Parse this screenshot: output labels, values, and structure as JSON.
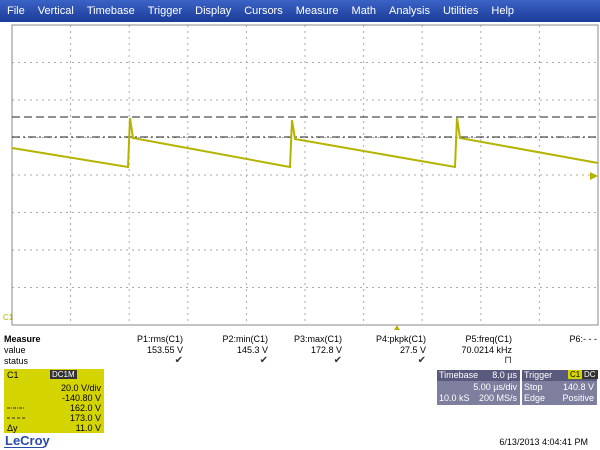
{
  "menu": [
    "File",
    "Vertical",
    "Timebase",
    "Trigger",
    "Display",
    "Cursors",
    "Measure",
    "Math",
    "Analysis",
    "Utilities",
    "Help"
  ],
  "measure": {
    "title": "Measure",
    "params": [
      "P1:rms(C1)",
      "P2:min(C1)",
      "P3:max(C1)",
      "P4:pkpk(C1)",
      "P5:freq(C1)",
      "P6:- - -"
    ],
    "row_labels": [
      "value",
      "status"
    ],
    "values": [
      "153.55 V",
      "145.3 V",
      "172.8 V",
      "27.5 V",
      "70.0214 kHz"
    ]
  },
  "channel": {
    "name": "C1",
    "coupling": "DC1M",
    "scale": "20.0 V/div",
    "offset": "-140.80 V",
    "cursor1": "162.0 V",
    "cursor2": "173.0 V",
    "delta_label": "Δy",
    "delta": "11.0 V"
  },
  "timebase": {
    "label": "Timebase",
    "delay": "8.0 µs",
    "scale": "5.00 µs/div",
    "samples": "10.0 kS",
    "rate": "200 MS/s"
  },
  "trigger": {
    "label": "Trigger",
    "source": "C1",
    "coupling": "DC",
    "mode": "Stop",
    "level": "140.8 V",
    "type": "Edge",
    "slope": "Positive"
  },
  "brand": "LeCroy",
  "timestamp": "6/13/2013 4:04:41 PM"
}
